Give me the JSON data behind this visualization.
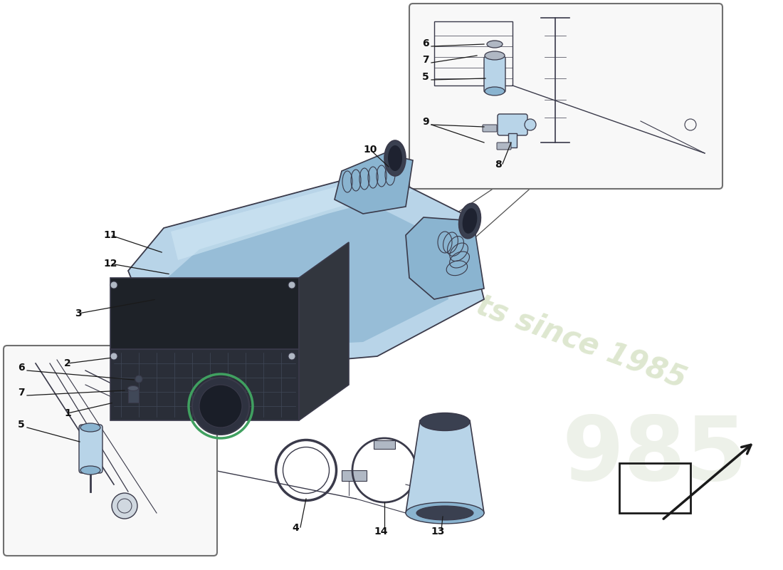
{
  "bg_color": "#ffffff",
  "part_blue_light": "#b8d4e8",
  "part_blue_mid": "#8ab4d0",
  "part_blue_dark": "#6090b0",
  "part_gray": "#b0b8c4",
  "part_dark": "#404858",
  "outline": "#3a3a4a",
  "arrow_color": "#1a1a1a",
  "box_edge": "#707070",
  "box_fill": "#f8f8f8",
  "watermark_text_color": "#c8d8b0",
  "watermark_num_color": "#d4dcc8",
  "label_fontsize": 10,
  "leader_lw": 0.9
}
